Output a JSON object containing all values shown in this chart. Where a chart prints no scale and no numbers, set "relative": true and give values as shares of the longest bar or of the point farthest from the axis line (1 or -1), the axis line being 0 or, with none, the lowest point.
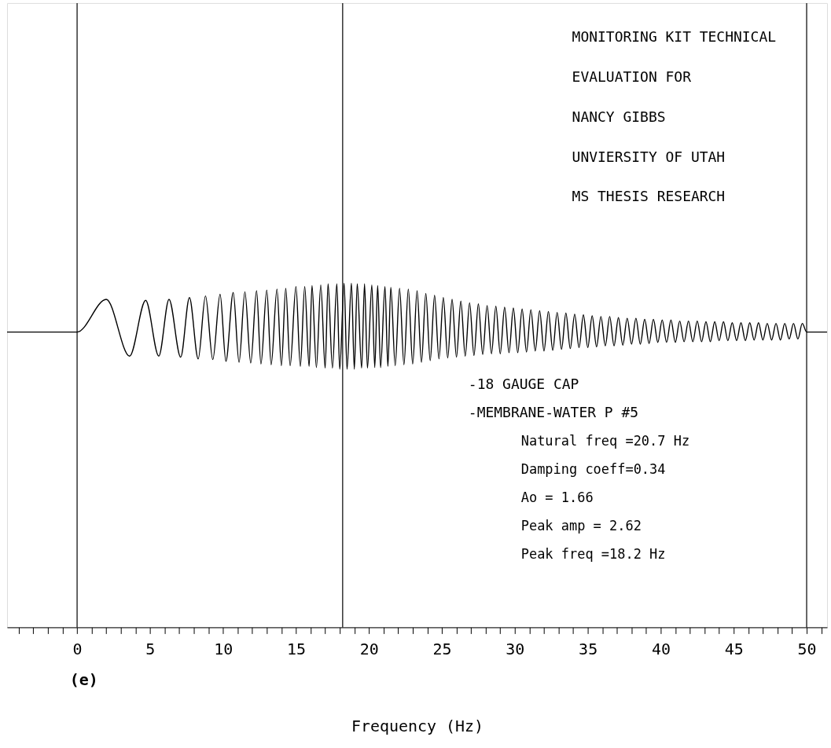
{
  "chart_data": {
    "type": "line",
    "title": "(e)",
    "xlabel": "Frequency (Hz)",
    "relative": true,
    "grid": false,
    "xlim": [
      -4.8,
      51.4
    ],
    "xticks": [
      {
        "value": -4,
        "label": null
      },
      {
        "value": -3,
        "label": null
      },
      {
        "value": -2,
        "label": null
      },
      {
        "value": -1,
        "label": null
      },
      0,
      {
        "value": 1,
        "label": null
      },
      {
        "value": 2,
        "label": null
      },
      {
        "value": 3,
        "label": null
      },
      {
        "value": 4,
        "label": null
      },
      5,
      {
        "value": 6,
        "label": null
      },
      {
        "value": 7,
        "label": null
      },
      {
        "value": 8,
        "label": null
      },
      {
        "value": 9,
        "label": null
      },
      10,
      {
        "value": 11,
        "label": null
      },
      {
        "value": 12,
        "label": null
      },
      {
        "value": 13,
        "label": null
      },
      {
        "value": 14,
        "label": null
      },
      15,
      {
        "value": 16,
        "label": null
      },
      {
        "value": 17,
        "label": null
      },
      {
        "value": 18,
        "label": null
      },
      {
        "value": 19,
        "label": null
      },
      20,
      {
        "value": 21,
        "label": null
      },
      {
        "value": 22,
        "label": null
      },
      {
        "value": 23,
        "label": null
      },
      {
        "value": 24,
        "label": null
      },
      25,
      {
        "value": 26,
        "label": null
      },
      {
        "value": 27,
        "label": null
      },
      {
        "value": 28,
        "label": null
      },
      {
        "value": 29,
        "label": null
      },
      30,
      {
        "value": 31,
        "label": null
      },
      {
        "value": 32,
        "label": null
      },
      {
        "value": 33,
        "label": null
      },
      {
        "value": 34,
        "label": null
      },
      35,
      {
        "value": 36,
        "label": null
      },
      {
        "value": 37,
        "label": null
      },
      {
        "value": 38,
        "label": null
      },
      {
        "value": 39,
        "label": null
      },
      40,
      {
        "value": 41,
        "label": null
      },
      {
        "value": 42,
        "label": null
      },
      {
        "value": 43,
        "label": null
      },
      {
        "value": 44,
        "label": null
      },
      45,
      {
        "value": 46,
        "label": null
      },
      {
        "value": 47,
        "label": null
      },
      {
        "value": 48,
        "label": null
      },
      {
        "value": 49,
        "label": null
      },
      50,
      {
        "value": 51,
        "label": null
      }
    ],
    "ref_lines": [
      {
        "axis": "x",
        "value": 0,
        "color": "#000000"
      },
      {
        "axis": "x",
        "value": 18.2,
        "color": "#000000"
      },
      {
        "axis": "x",
        "value": 50,
        "color": "#000000"
      }
    ],
    "annotations": [
      "MONITORING KIT TECHNICAL",
      "EVALUATION FOR",
      "NANCY GIBBS",
      "UNVIERSITY OF UTAH",
      "MS THESIS RESEARCH",
      "-18 GAUGE CAP",
      "-MEMBRANE-WATER P #5",
      "Natural freq =20.7 Hz",
      "Damping coeff=0.34",
      "Ao = 1.66",
      "Peak amp = 2.62",
      "Peak freq =18.2 Hz"
    ],
    "x": [
      -4.8,
      0,
      2.0,
      3.6,
      4.7,
      5.6,
      6.3,
      7.1,
      7.7,
      8.3,
      8.8,
      9.3,
      9.8,
      10.2,
      10.7,
      11.1,
      11.5,
      11.9,
      12.3,
      12.6,
      13.0,
      13.3,
      13.7,
      14.0,
      14.3,
      14.6,
      15.0,
      15.3,
      15.6,
      15.9,
      16.1,
      16.4,
      16.7,
      17.0,
      17.2,
      17.5,
      17.8,
      18.0,
      18.3,
      18.5,
      18.8,
      19.0,
      19.2,
      19.5,
      19.7,
      19.9,
      20.2,
      20.4,
      20.6,
      20.8,
      21.1,
      21.3,
      21.5,
      21.8,
      22.1,
      22.4,
      22.7,
      23.0,
      23.3,
      23.6,
      23.9,
      24.2,
      24.5,
      24.8,
      25.1,
      25.4,
      25.7,
      26.0,
      26.3,
      26.6,
      26.9,
      27.2,
      27.5,
      27.8,
      28.1,
      28.4,
      28.7,
      29.0,
      29.3,
      29.6,
      29.9,
      30.2,
      30.5,
      30.8,
      31.1,
      31.4,
      31.7,
      32.0,
      32.3,
      32.6,
      32.9,
      33.2,
      33.5,
      33.8,
      34.1,
      34.4,
      34.7,
      35.0,
      35.3,
      35.6,
      35.9,
      36.2,
      36.5,
      36.8,
      37.1,
      37.4,
      37.7,
      38.0,
      38.3,
      38.6,
      38.9,
      39.2,
      39.5,
      39.8,
      40.1,
      40.4,
      40.7,
      41.0,
      41.3,
      41.6,
      41.9,
      42.2,
      42.5,
      42.8,
      43.1,
      43.4,
      43.7,
      44.0,
      44.3,
      44.6,
      44.9,
      45.2,
      45.5,
      45.8,
      46.1,
      46.4,
      46.7,
      47.0,
      47.3,
      47.6,
      47.9,
      48.2,
      48.5,
      48.8,
      49.1,
      49.4,
      49.7,
      50.0,
      51.4
    ],
    "series": [
      {
        "color": "#000000",
        "values": [
          0.858,
          0.858,
          0.953,
          0.788,
          0.95,
          0.788,
          0.953,
          0.785,
          0.958,
          0.78,
          0.963,
          0.778,
          0.968,
          0.773,
          0.973,
          0.77,
          0.975,
          0.768,
          0.978,
          0.765,
          0.98,
          0.763,
          0.983,
          0.76,
          0.985,
          0.76,
          0.99,
          0.758,
          0.99,
          0.758,
          0.993,
          0.755,
          0.995,
          0.753,
          0.998,
          0.753,
          0.998,
          0.75,
          1.0,
          0.75,
          1.0,
          0.75,
          0.998,
          0.753,
          0.998,
          0.753,
          0.995,
          0.755,
          0.993,
          0.755,
          0.99,
          0.758,
          0.988,
          0.76,
          0.985,
          0.763,
          0.983,
          0.765,
          0.978,
          0.77,
          0.97,
          0.775,
          0.965,
          0.78,
          0.958,
          0.783,
          0.953,
          0.785,
          0.948,
          0.788,
          0.943,
          0.79,
          0.94,
          0.793,
          0.935,
          0.795,
          0.933,
          0.795,
          0.93,
          0.798,
          0.928,
          0.798,
          0.925,
          0.8,
          0.923,
          0.803,
          0.92,
          0.803,
          0.918,
          0.805,
          0.915,
          0.808,
          0.913,
          0.81,
          0.91,
          0.813,
          0.908,
          0.813,
          0.905,
          0.815,
          0.903,
          0.818,
          0.903,
          0.818,
          0.9,
          0.82,
          0.898,
          0.823,
          0.898,
          0.823,
          0.895,
          0.825,
          0.895,
          0.828,
          0.893,
          0.828,
          0.893,
          0.828,
          0.89,
          0.83,
          0.89,
          0.83,
          0.89,
          0.83,
          0.888,
          0.83,
          0.888,
          0.833,
          0.888,
          0.833,
          0.885,
          0.833,
          0.885,
          0.833,
          0.885,
          0.835,
          0.885,
          0.835,
          0.883,
          0.835,
          0.883,
          0.835,
          0.883,
          0.838,
          0.883,
          0.838,
          0.883,
          0.858,
          0.858
        ]
      }
    ]
  }
}
